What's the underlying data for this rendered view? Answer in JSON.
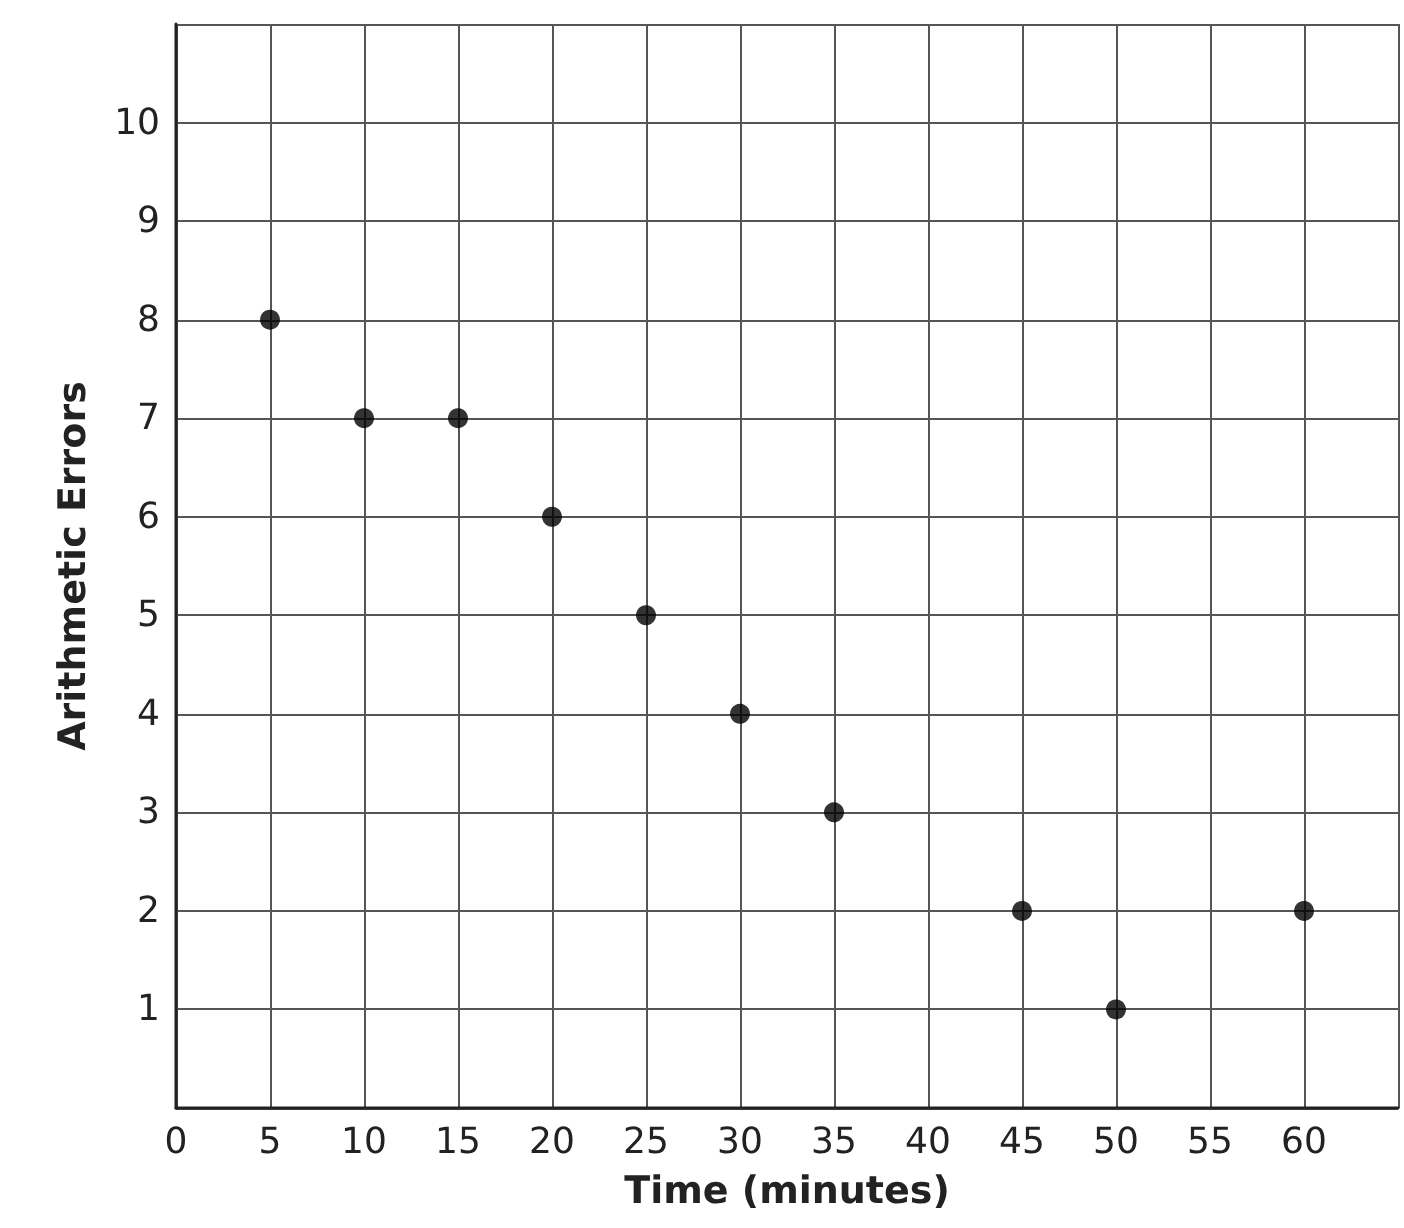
{
  "chart_data": {
    "type": "scatter",
    "xlabel": "Time (minutes)",
    "ylabel": "Arithmetic Errors",
    "x": [
      5,
      10,
      15,
      20,
      25,
      30,
      35,
      45,
      50,
      60
    ],
    "values": [
      8,
      7,
      7,
      6,
      5,
      4,
      3,
      2,
      1,
      2
    ],
    "color": "#000000",
    "marker": "circle",
    "grid": true,
    "xlim": [
      0,
      65
    ],
    "xticks": [
      0,
      5,
      10,
      15,
      20,
      25,
      30,
      35,
      40,
      45,
      50,
      55,
      60
    ],
    "ylim": [
      0,
      11
    ],
    "yticks": [
      {
        "value": 0,
        "label": null
      },
      1,
      2,
      3,
      4,
      5,
      6,
      7,
      8,
      9,
      10
    ]
  }
}
